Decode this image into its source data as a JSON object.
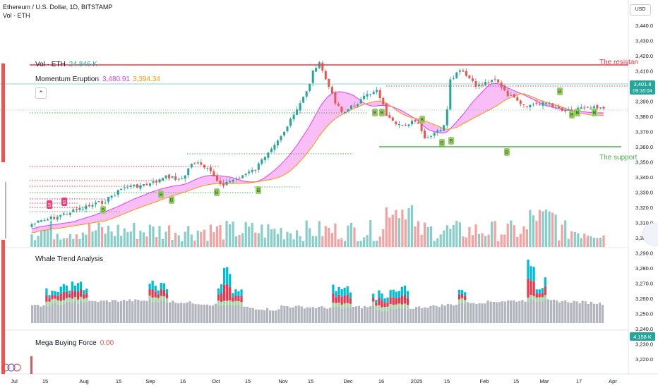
{
  "header": {
    "symbol_line": "Ethereum / U.S. Dollar, 1D, BITSTAMP",
    "vol_line": "Vol · ETH",
    "currency": "USD"
  },
  "indicators": {
    "vol": {
      "name": "Vol · ETH",
      "value": "24.846 K"
    },
    "momentum": {
      "name": "Momentum Eruption",
      "value1": "3,480.91",
      "value2": "3,394.34"
    },
    "whale": {
      "name": "Whale Trend Analysis"
    },
    "mega": {
      "name": "Mega Buying Force",
      "value": "0.00"
    }
  },
  "annotations": {
    "resistance": "The resistan",
    "support": "The support"
  },
  "price_badge": {
    "price": "3,401.8",
    "countdown": "09:16:04"
  },
  "volume_badge": "4.158 K",
  "price_axis": [
    "3,440.0",
    "3,430.0",
    "3,420.0",
    "3,410.0",
    "3,400.0",
    "3,390.0",
    "3,380.0",
    "3,370.0",
    "3,360.0",
    "3,350.0",
    "3,340.0",
    "3,330.0",
    "3,320.0",
    "3,310.0",
    "3,300.0",
    "3,290.0",
    "3,280.0",
    "3,270.0",
    "3,260.0",
    "3,250.0",
    "3,240.0",
    "3,230.0",
    "3,220.0"
  ],
  "date_axis": [
    "Jul",
    "15",
    "Aug",
    "15",
    "Sep",
    "16",
    "Oct",
    "15",
    "Nov",
    "15",
    "Dec",
    "16",
    "2025",
    "15",
    "Feb",
    "15",
    "Mar",
    "17",
    "Apr"
  ],
  "signals": {
    "buy_label": "B",
    "sell_label": "S"
  },
  "colors": {
    "up": "#26a69a",
    "down": "#ef5350",
    "resistance": "#f23645",
    "support": "#4caf50",
    "cloud": "#f7a8f3",
    "ma_orange": "#ff9800",
    "ma_pink": "#e040fb",
    "whale_gray": "#b2b5be",
    "whale_cyan": "#00bcd4",
    "whale_red": "#e53950",
    "whale_green": "#a5d6a7"
  },
  "chart_data": {
    "type": "candlestick",
    "series_note": "",
    "ylim": [
      3215,
      3445
    ],
    "resistance_level": 3413,
    "support_level": 3361,
    "last_price": 3401.8
  }
}
